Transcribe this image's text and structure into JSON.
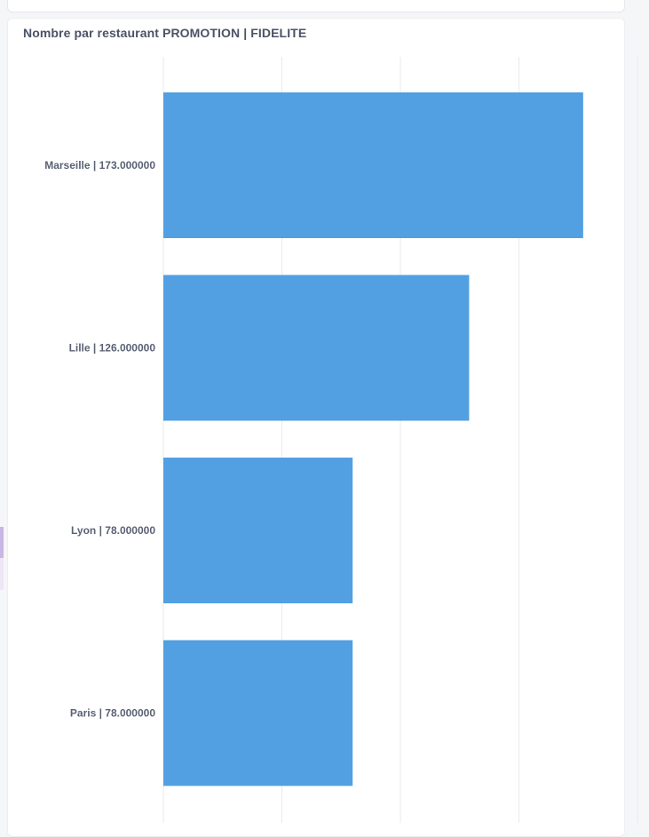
{
  "chart_data": {
    "type": "bar",
    "orientation": "horizontal",
    "title": "Nombre par restaurant PROMOTION | FIDELITE",
    "xlabel": "",
    "ylabel": "",
    "categories": [
      "Marseille | 173.000000",
      "Lille | 126.000000",
      "Lyon | 78.000000",
      "Paris | 78.000000"
    ],
    "values": [
      173,
      126,
      78,
      78
    ],
    "xlim": [
      0,
      195
    ],
    "grid": true,
    "legend": "none",
    "bar_color": "#529fe2",
    "grid_color": "#e8eaee"
  }
}
